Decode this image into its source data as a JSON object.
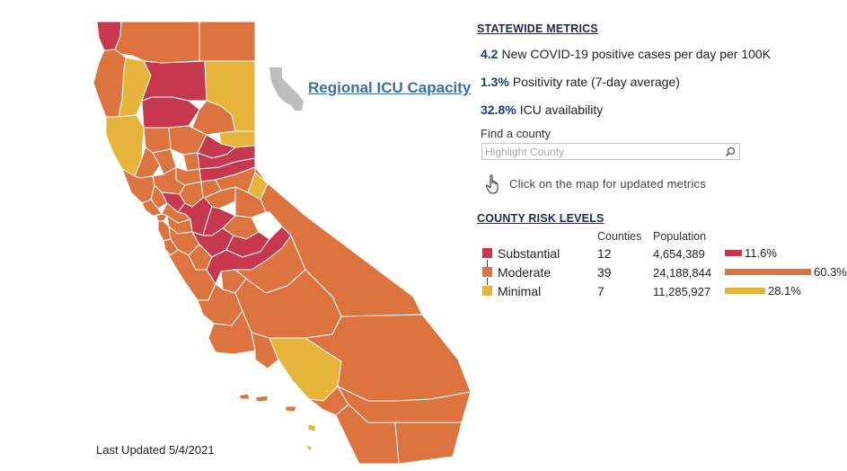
{
  "colors": {
    "substantial": "#c7384e",
    "moderate": "#dd7440",
    "minimal": "#e6b43a",
    "county_border": "#ffffff",
    "link": "#3a6fa5",
    "metric_value": "#1a3c7a"
  },
  "icu_link": "Regional ICU Capacity",
  "last_updated": "Last Updated 5/4/2021",
  "statewide": {
    "title": "STATEWIDE METRICS",
    "metrics": [
      {
        "value": "4.2",
        "label": "New COVID-19 positive cases per day per 100K"
      },
      {
        "value": "1.3%",
        "label": "Positivity rate (7-day average)"
      },
      {
        "value": "32.8%",
        "label": "ICU availability"
      }
    ]
  },
  "find": {
    "label": "Find a county",
    "placeholder": "Highlight County",
    "search_icon": "search-icon"
  },
  "hint": {
    "icon": "pointer-hand-icon",
    "text": "Click on the map for updated metrics"
  },
  "risk": {
    "title": "COUNTY RISK LEVELS",
    "col_counties": "Counties",
    "col_population": "Population",
    "rows": [
      {
        "label": "Substantial",
        "counties": "12",
        "population": "4,654,389",
        "pct_label": "11.6%",
        "share": 0.116,
        "color": "#c7384e"
      },
      {
        "label": "Moderate",
        "counties": "39",
        "population": "24,188,844",
        "pct_label": "60.3%",
        "share": 0.603,
        "color": "#dd7440"
      },
      {
        "label": "Minimal",
        "counties": "7",
        "population": "11,285,927",
        "pct_label": "28.1%",
        "share": 0.281,
        "color": "#e6b43a"
      }
    ]
  }
}
